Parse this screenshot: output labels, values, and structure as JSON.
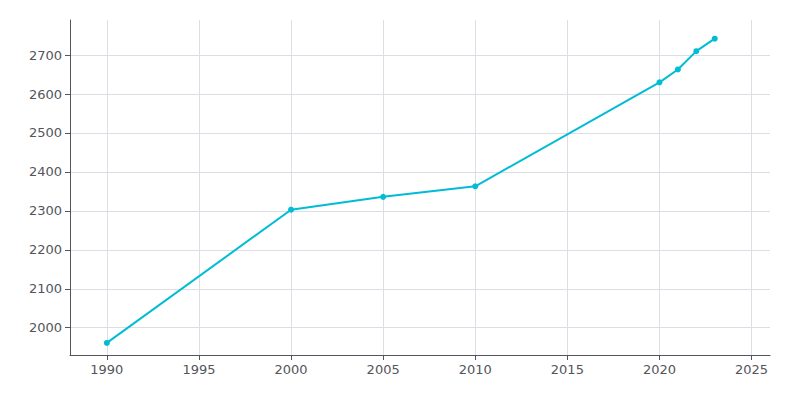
{
  "chart_data": {
    "type": "line",
    "x": [
      1990,
      2000,
      2005,
      2010,
      2020,
      2021,
      2022,
      2023
    ],
    "values": [
      1961,
      2303,
      2336,
      2363,
      2630,
      2663,
      2710,
      2742
    ],
    "color": "#00BCD4",
    "marker": "circle",
    "xlim": [
      1988,
      2026
    ],
    "xticks": [
      1990,
      1995,
      2000,
      2005,
      2010,
      2015,
      2020,
      2025
    ],
    "ylim": [
      1930,
      2790
    ],
    "yticks": [
      2000,
      2100,
      2200,
      2300,
      2400,
      2500,
      2600,
      2700
    ],
    "grid": true
  }
}
